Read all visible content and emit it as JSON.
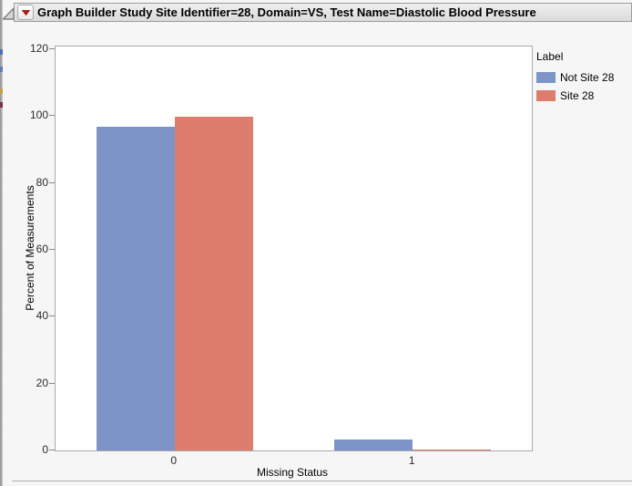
{
  "window": {
    "header": {
      "disclosure_icon": "open-outline-triangle",
      "menu_icon": "red-triangle-menu",
      "title": "Graph Builder Study Site Identifier=28, Domain=VS, Test Name=Diastolic Blood Pressure"
    }
  },
  "chart_data": {
    "type": "bar",
    "title": "",
    "xlabel": "Missing Status",
    "ylabel": "Percent of Measurements",
    "categories": [
      "0",
      "1"
    ],
    "series": [
      {
        "name": "Not Site 28",
        "color": "#7D94C8",
        "values": [
          96.8,
          3.2
        ]
      },
      {
        "name": "Site 28",
        "color": "#DD7D6E",
        "values": [
          99.8,
          0.4
        ]
      }
    ],
    "ylim": [
      0,
      120
    ],
    "ytick_step": 20,
    "grid": false,
    "legend": {
      "title": "Label",
      "position": "right"
    }
  }
}
